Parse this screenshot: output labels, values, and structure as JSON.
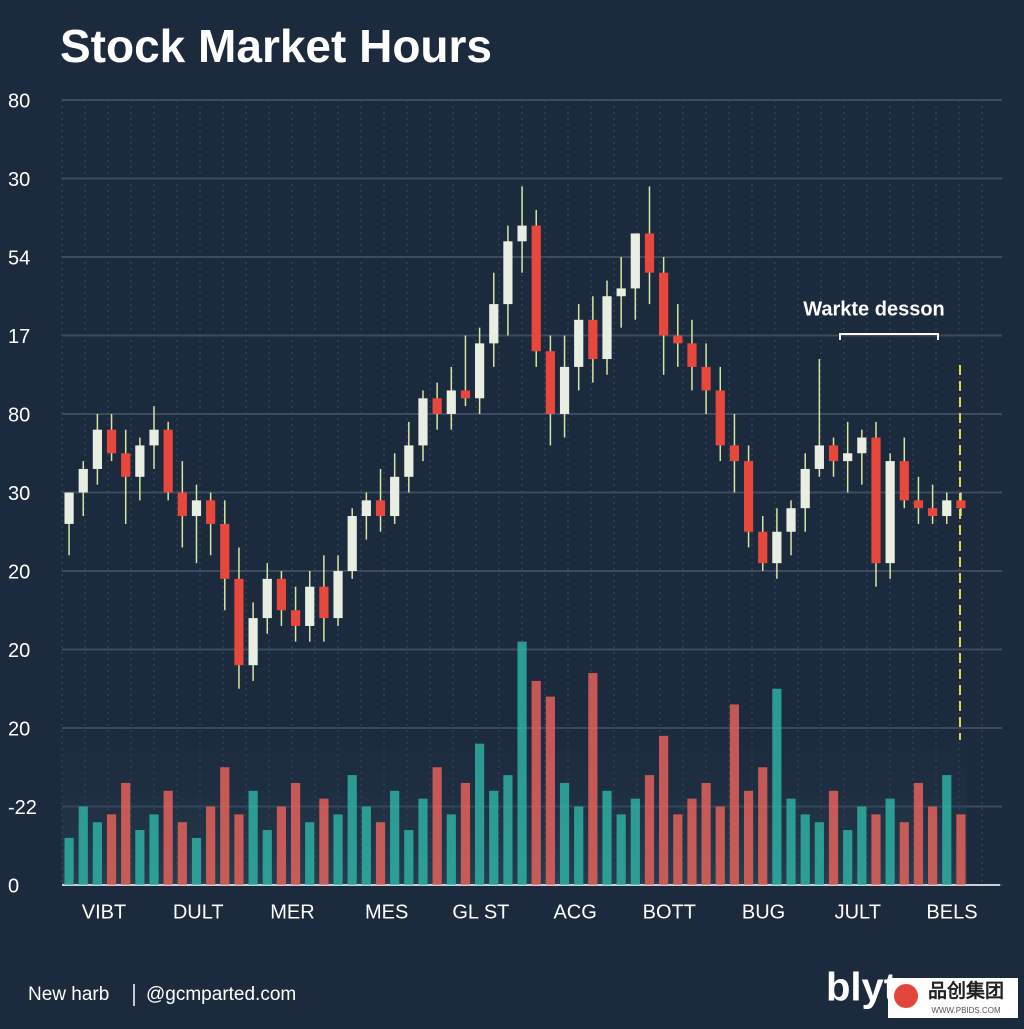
{
  "chart_data": {
    "type": "candlestick",
    "title": "Stock Market Hours",
    "ylim": [
      0,
      100
    ],
    "yticks": [
      100,
      90,
      80,
      70,
      60,
      50,
      40,
      30,
      20,
      10,
      0
    ],
    "y_axis_labels": [
      "80",
      "30",
      "54",
      "17",
      "80",
      "30",
      "20",
      "20",
      "20",
      "-22",
      "0"
    ],
    "x_axis_labels": [
      "VIBT",
      "DULT",
      "MER",
      "MES",
      "GL ST",
      "ACG",
      "BOTT",
      "BUG",
      "JULT",
      "BELS"
    ],
    "up_color": "#e8efe2",
    "down_color": "#e8483c",
    "volume_up_color": "#2fb7a8",
    "volume_down_color": "#f0645a",
    "grid": true,
    "annotation": "Warkte desson",
    "open": [
      46,
      50,
      53,
      58,
      55,
      52,
      56,
      58,
      50,
      47,
      49,
      46,
      39,
      28,
      34,
      39,
      35,
      33,
      38,
      34,
      40,
      47,
      49,
      47,
      52,
      56,
      62,
      60,
      63,
      62,
      69,
      74,
      82,
      84,
      68,
      60,
      66,
      72,
      67,
      75,
      76,
      83,
      78,
      70,
      69,
      66,
      63,
      56,
      54,
      45,
      41,
      45,
      48,
      53,
      56,
      54,
      55,
      57,
      41,
      54,
      49,
      48,
      47,
      49
    ],
    "high": [
      50,
      54,
      60,
      60,
      58,
      57,
      61,
      59,
      54,
      51,
      50,
      49,
      43,
      36,
      41,
      40,
      38,
      40,
      42,
      42,
      48,
      50,
      53,
      55,
      59,
      63,
      64,
      66,
      70,
      71,
      78,
      84,
      89,
      86,
      70,
      70,
      74,
      75,
      77,
      80,
      83,
      89,
      80,
      74,
      72,
      69,
      66,
      60,
      56,
      47,
      48,
      49,
      55,
      67,
      57,
      59,
      58,
      59,
      55,
      57,
      52,
      51,
      50,
      50
    ],
    "low": [
      42,
      47,
      51,
      54,
      46,
      49,
      53,
      49,
      43,
      41,
      42,
      35,
      25,
      26,
      32,
      33,
      31,
      31,
      31,
      33,
      39,
      44,
      45,
      46,
      50,
      54,
      58,
      58,
      61,
      60,
      66,
      70,
      78,
      66,
      56,
      57,
      63,
      64,
      65,
      71,
      72,
      74,
      65,
      66,
      63,
      60,
      54,
      50,
      43,
      40,
      39,
      42,
      45,
      52,
      52,
      50,
      51,
      38,
      39,
      48,
      46,
      46,
      46,
      47
    ],
    "close": [
      50,
      53,
      58,
      55,
      52,
      56,
      58,
      50,
      47,
      49,
      46,
      39,
      28,
      34,
      39,
      35,
      33,
      38,
      34,
      40,
      47,
      49,
      47,
      52,
      56,
      62,
      60,
      63,
      62,
      69,
      74,
      82,
      84,
      68,
      60,
      66,
      72,
      67,
      75,
      76,
      83,
      78,
      70,
      69,
      66,
      63,
      56,
      54,
      45,
      41,
      45,
      48,
      53,
      56,
      54,
      55,
      57,
      41,
      54,
      49,
      48,
      47,
      49,
      48
    ],
    "volume": [
      6,
      10,
      8,
      9,
      13,
      7,
      9,
      12,
      8,
      6,
      10,
      15,
      9,
      12,
      7,
      10,
      13,
      8,
      11,
      9,
      14,
      10,
      8,
      12,
      7,
      11,
      15,
      9,
      13,
      18,
      12,
      14,
      31,
      26,
      24,
      13,
      10,
      27,
      12,
      9,
      11,
      14,
      19,
      9,
      11,
      13,
      10,
      23,
      12,
      15,
      25,
      11,
      9,
      8,
      12,
      7,
      10,
      9,
      11,
      8,
      13,
      10,
      14,
      9
    ]
  },
  "footer": {
    "left": "New harb",
    "handle": "@gcmparted.com",
    "logo": "blyt",
    "badge": "品创集团",
    "badge_url": "WWW.PBIDS.COM"
  }
}
